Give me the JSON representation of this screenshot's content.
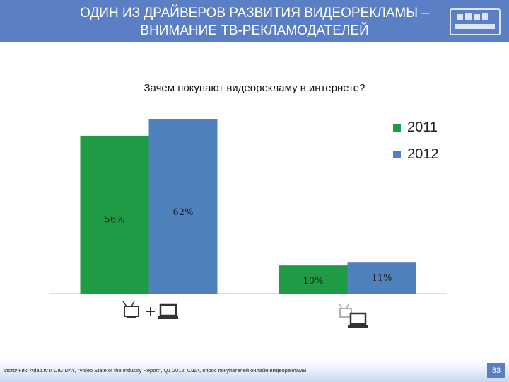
{
  "header": {
    "title_line1": "ОДИН ИЗ ДРАЙВЕРОВ РАЗВИТИЯ ВИДЕОРЕКЛАМЫ –",
    "title_line2": "ВНИМАНИЕ ТВ-РЕКЛАМОДАТЕЛЕЙ"
  },
  "colors": {
    "header_bg": "#5a7fc4",
    "series_2011": "#1f9a45",
    "series_2012": "#4f81bd"
  },
  "icons": {
    "category_1": [
      "tv-icon",
      "plus-icon",
      "laptop-icon"
    ],
    "category_2": [
      "tv-icon",
      "laptop-icon"
    ],
    "logo": "company-logo-icon"
  },
  "chart_data": {
    "type": "bar",
    "title": "Зачем покупают видеорекламу в интернете?",
    "categories": [
      "",
      ""
    ],
    "series": [
      {
        "name": "2011",
        "values": [
          56,
          10
        ],
        "labels": [
          "56%",
          "10%"
        ],
        "color": "#1f9a45"
      },
      {
        "name": "2012",
        "values": [
          62,
          11
        ],
        "labels": [
          "62%",
          "11%"
        ],
        "color": "#4f81bd"
      }
    ],
    "ylim": [
      0,
      62
    ],
    "grid": false,
    "legend": "right"
  },
  "footer": {
    "source": "Источник: Adap.tv и DIGIDAY, \"Video State of the Industry Report\", Q1 2012. США, опрос покупателей онлайн-видеорекламы",
    "page_number": "83"
  }
}
